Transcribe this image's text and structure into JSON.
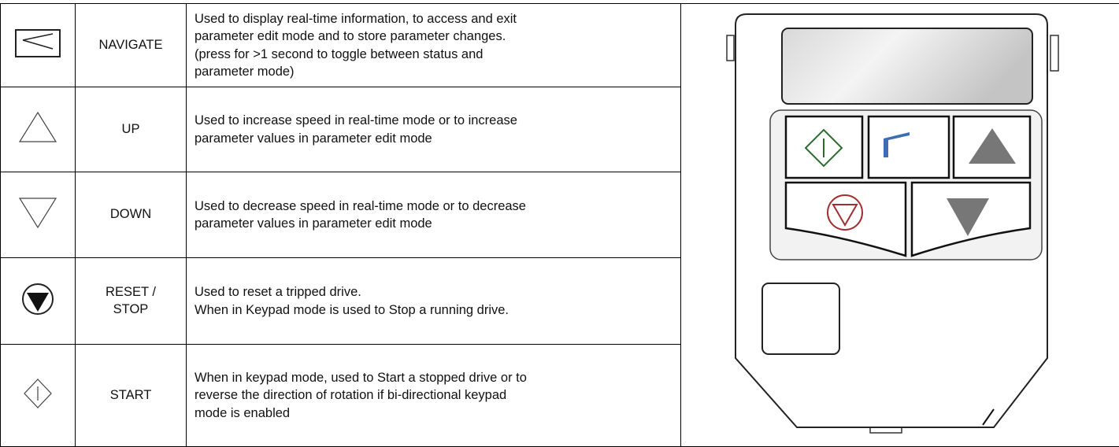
{
  "table": {
    "rows": [
      {
        "name": "NAVIGATE",
        "description": [
          "Used to display real-time information, to access and exit",
          "parameter edit mode and to store parameter changes.",
          "(press for >1 second to toggle between status and",
          "parameter mode)"
        ]
      },
      {
        "name": "UP",
        "description": [
          "Used to increase speed in real-time mode or to increase",
          "parameter values in parameter edit mode"
        ]
      },
      {
        "name": "DOWN",
        "description": [
          "Used to decrease speed in real-time mode or to decrease",
          "parameter values in parameter edit mode"
        ]
      },
      {
        "name": "RESET / STOP",
        "description": [
          "Used to reset a tripped drive.",
          "When in Keypad mode is used to Stop a running drive."
        ]
      },
      {
        "name": "START",
        "description": [
          "When in keypad mode, used to Start a stopped drive or to",
          "reverse the direction of rotation if bi-directional keypad",
          "mode is enabled"
        ]
      }
    ]
  }
}
